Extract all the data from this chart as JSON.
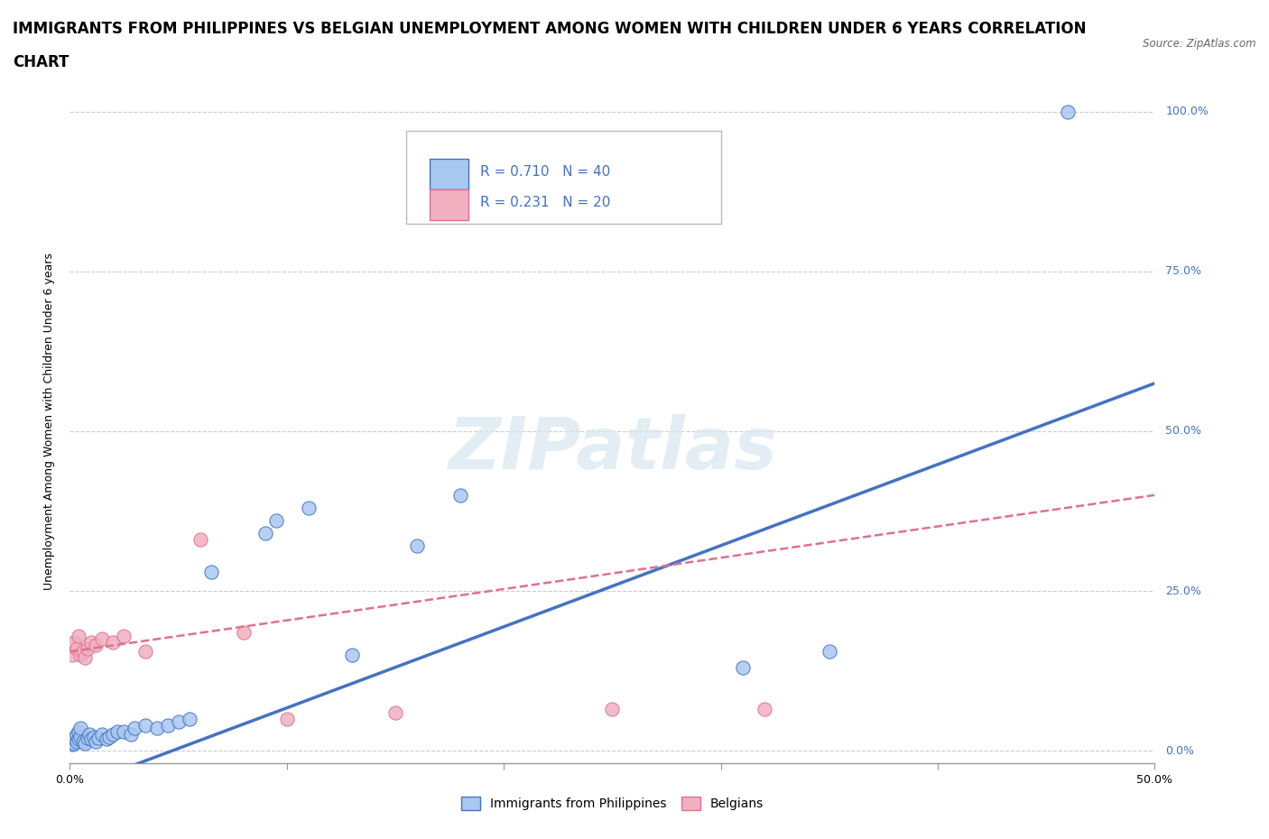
{
  "title_line1": "IMMIGRANTS FROM PHILIPPINES VS BELGIAN UNEMPLOYMENT AMONG WOMEN WITH CHILDREN UNDER 6 YEARS CORRELATION",
  "title_line2": "CHART",
  "source": "Source: ZipAtlas.com",
  "ylabel": "Unemployment Among Women with Children Under 6 years",
  "xlim": [
    0.0,
    0.5
  ],
  "ylim": [
    -0.02,
    1.05
  ],
  "blue_color": "#4472c4",
  "blue_scatter_fill": "#a8c8f0",
  "blue_scatter_edge": "#4472c4",
  "pink_color": "#e07090",
  "pink_scatter_fill": "#f0b0c0",
  "pink_scatter_edge": "#e07090",
  "grid_color": "#cccccc",
  "watermark": "ZIPatlas",
  "blue_scatter_x": [
    0.001,
    0.002,
    0.002,
    0.003,
    0.003,
    0.004,
    0.004,
    0.005,
    0.005,
    0.006,
    0.007,
    0.008,
    0.009,
    0.01,
    0.011,
    0.012,
    0.013,
    0.015,
    0.017,
    0.018,
    0.02,
    0.022,
    0.025,
    0.028,
    0.03,
    0.035,
    0.04,
    0.045,
    0.05,
    0.055,
    0.065,
    0.09,
    0.095,
    0.11,
    0.13,
    0.16,
    0.18,
    0.31,
    0.35,
    0.46
  ],
  "blue_scatter_y": [
    0.01,
    0.012,
    0.02,
    0.015,
    0.025,
    0.018,
    0.03,
    0.022,
    0.035,
    0.015,
    0.012,
    0.02,
    0.025,
    0.018,
    0.022,
    0.015,
    0.02,
    0.025,
    0.018,
    0.022,
    0.025,
    0.03,
    0.03,
    0.025,
    0.035,
    0.04,
    0.035,
    0.04,
    0.045,
    0.05,
    0.28,
    0.34,
    0.36,
    0.38,
    0.15,
    0.32,
    0.4,
    0.13,
    0.155,
    1.0
  ],
  "pink_scatter_x": [
    0.001,
    0.002,
    0.003,
    0.004,
    0.005,
    0.006,
    0.007,
    0.008,
    0.01,
    0.012,
    0.015,
    0.02,
    0.025,
    0.035,
    0.06,
    0.08,
    0.1,
    0.15,
    0.25,
    0.32
  ],
  "pink_scatter_y": [
    0.15,
    0.17,
    0.16,
    0.18,
    0.15,
    0.155,
    0.145,
    0.16,
    0.17,
    0.165,
    0.175,
    0.17,
    0.18,
    0.155,
    0.33,
    0.185,
    0.05,
    0.06,
    0.065,
    0.065
  ],
  "blue_line_x": [
    0.0,
    0.5
  ],
  "blue_line_y": [
    -0.06,
    0.575
  ],
  "pink_line_x": [
    0.0,
    0.5
  ],
  "pink_line_y": [
    0.155,
    0.4
  ],
  "ytick_vals": [
    0.0,
    0.25,
    0.5,
    0.75,
    1.0
  ],
  "ytick_labels": [
    "0.0%",
    "25.0%",
    "50.0%",
    "75.0%",
    "100.0%"
  ],
  "xtick_vals": [
    0.0,
    0.1,
    0.2,
    0.3,
    0.4,
    0.5
  ],
  "xtick_labels": [
    "0.0%",
    "",
    "",
    "",
    "",
    "50.0%"
  ],
  "title_fontsize": 12,
  "axis_label_fontsize": 9
}
